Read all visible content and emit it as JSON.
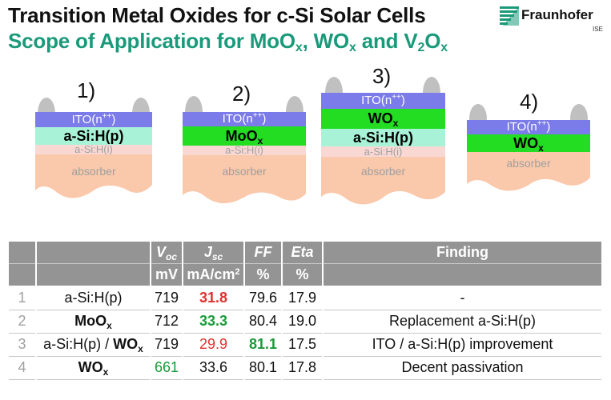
{
  "title": {
    "line1": "Transition Metal Oxides for c-Si Solar Cells",
    "line2_parts": [
      "Scope of Application for MoO",
      "x",
      ", WO",
      "x",
      " and V",
      "2",
      "O",
      "x"
    ]
  },
  "logo": {
    "name": "Fraunhofer",
    "sub": "ISE",
    "icon": "fraunhofer-logo-icon",
    "color": "#1a9a7a"
  },
  "stacks": [
    {
      "number": "1)",
      "layers": [
        "ITO(n",
        "++",
        ")",
        "a-Si:H(p)",
        "a-Si:H(i)",
        "absorber"
      ]
    },
    {
      "number": "2)",
      "layers": [
        "ITO(n",
        "++",
        ")",
        "MoO",
        "x",
        "a-Si:H(i)",
        "absorber"
      ]
    },
    {
      "number": "3)",
      "layers": [
        "ITO(n",
        "++",
        ")",
        "WO",
        "x",
        "a-Si:H(p)",
        "a-Si:H(i)",
        "absorber"
      ]
    },
    {
      "number": "4)",
      "layers": [
        "ITO(n",
        "++",
        ")",
        "WO",
        "x",
        "absorber"
      ]
    }
  ],
  "colors": {
    "ito": "#7b7bea",
    "a_si_p": "#a8f2d8",
    "oxide": "#22dd22",
    "a_si_i": "#f9d8d4",
    "absorber": "#fac8aa",
    "contact": "#c0c0c0",
    "header": "#949494",
    "red": "#e03030",
    "green": "#1a9a3a"
  },
  "table": {
    "headers": {
      "voc": [
        "V",
        "oc"
      ],
      "jsc": [
        "J",
        "sc"
      ],
      "ff": "FF",
      "eta": "Eta",
      "finding": "Finding"
    },
    "units": {
      "voc": "mV",
      "jsc": [
        "mA/cm",
        "2"
      ],
      "ff": "%",
      "eta": "%"
    },
    "rows": [
      {
        "idx": "1",
        "label": "a-Si:H(p)",
        "voc": "719",
        "jsc": "31.8",
        "ff": "79.6",
        "eta": "17.9",
        "finding": "-"
      },
      {
        "idx": "2",
        "label": [
          "MoO",
          "x"
        ],
        "voc": "712",
        "jsc": "33.3",
        "ff": "80.4",
        "eta": "19.0",
        "finding": "Replacement a-Si:H(p)"
      },
      {
        "idx": "3",
        "label": [
          "a-Si:H(p) / ",
          "WO",
          "x"
        ],
        "voc": "719",
        "jsc": "29.9",
        "ff": "81.1",
        "eta": "17.5",
        "finding": "ITO / a-Si:H(p) improvement"
      },
      {
        "idx": "4",
        "label": [
          "WO",
          "x"
        ],
        "voc": "661",
        "jsc": "33.6",
        "ff": "80.1",
        "eta": "17.8",
        "finding": "Decent passivation"
      }
    ]
  }
}
